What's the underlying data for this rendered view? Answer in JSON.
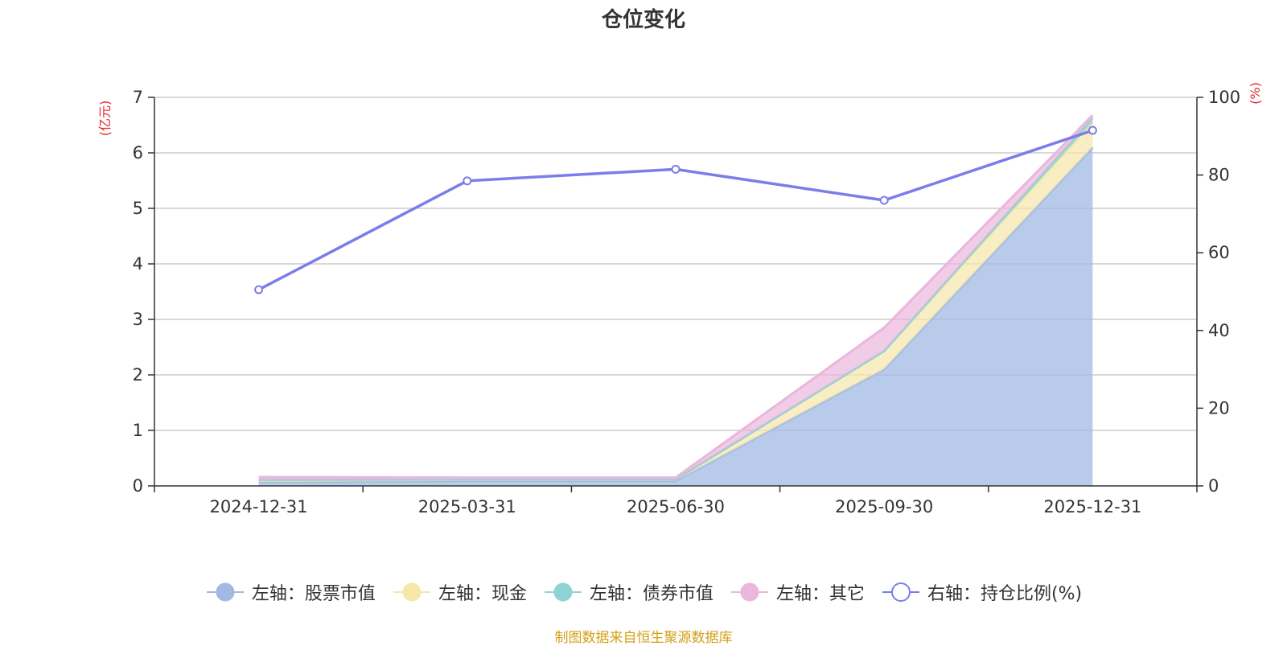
{
  "chart_data": {
    "type": "area",
    "title": "仓位变化",
    "categories": [
      "2024-12-31",
      "2025-03-31",
      "2025-06-30",
      "2025-09-30",
      "2025-12-31"
    ],
    "left_axis": {
      "unit_label": "(亿元)",
      "range": [
        0,
        7
      ],
      "ticks": [
        "0",
        "1",
        "2",
        "3",
        "4",
        "5",
        "6",
        "7"
      ]
    },
    "right_axis": {
      "unit_label": "(%)",
      "range": [
        0,
        100
      ],
      "ticks": [
        "0",
        "20",
        "40",
        "60",
        "80",
        "100"
      ]
    },
    "stacked_series": [
      {
        "name": "左轴：股票市值",
        "values": [
          0.07,
          0.09,
          0.09,
          2.1,
          6.1
        ],
        "color": "#a1b9e3"
      },
      {
        "name": "左轴：现金",
        "values": [
          0.04,
          0.03,
          0.03,
          0.33,
          0.45
        ],
        "color": "#f6e7a9"
      },
      {
        "name": "左轴：债券市值",
        "values": [
          0.0,
          0.0,
          0.0,
          0.0,
          0.08
        ],
        "color": "#8fd3d6"
      },
      {
        "name": "左轴：其它",
        "values": [
          0.05,
          0.03,
          0.03,
          0.42,
          0.05
        ],
        "color": "#e9b6dc"
      }
    ],
    "line_series": {
      "name": "右轴：持仓比例(%)",
      "values": [
        50.5,
        78.5,
        81.5,
        73.5,
        91.5
      ],
      "color": "#7b7deb"
    },
    "grid": true,
    "legend_position": "bottom"
  },
  "source_text": "制图数据来自恒生聚源数据库",
  "colors": {
    "unit_label": "#e8252b",
    "source_text": "#d4a017",
    "axis": "#333333",
    "grid": "#cccccc"
  }
}
